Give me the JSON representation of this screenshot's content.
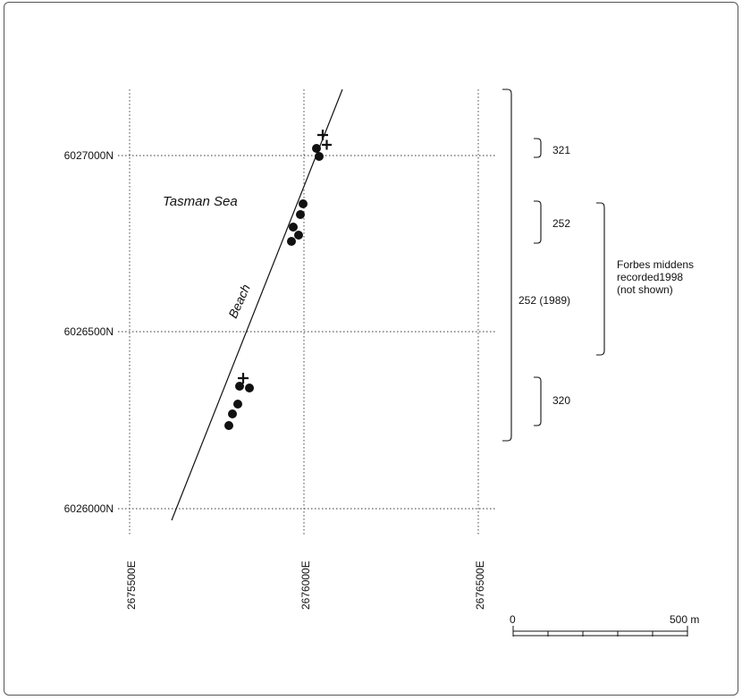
{
  "map": {
    "northings": [
      "6027000N",
      "6026500N",
      "6026000N"
    ],
    "eastings": [
      "2675500E",
      "2676000E",
      "2676500E"
    ],
    "sea_label": "Tasman Sea",
    "beach_label": "Beach",
    "groups": [
      {
        "id": "321",
        "label": "321"
      },
      {
        "id": "252",
        "label": "252"
      },
      {
        "id": "320",
        "label": "320"
      }
    ],
    "span_label": "252 (1989)",
    "forbes_label": [
      "Forbes middens",
      "recorded1998",
      "(not shown)"
    ],
    "scale_bar": {
      "start_label": "0",
      "end_label": "500 m"
    }
  }
}
